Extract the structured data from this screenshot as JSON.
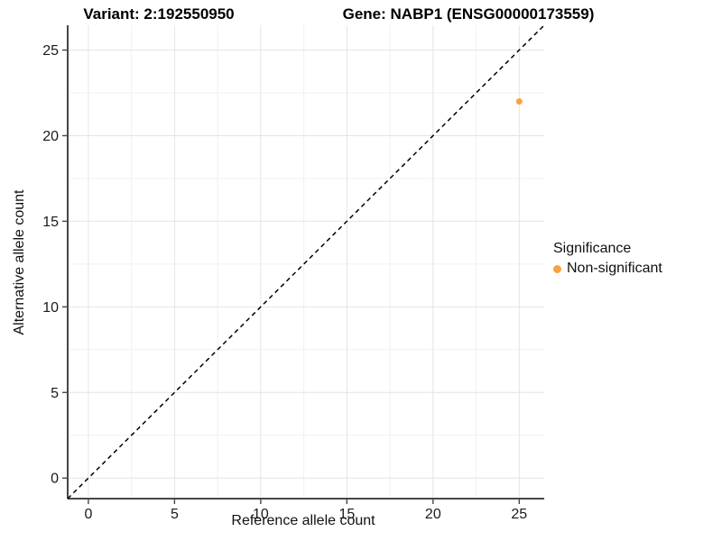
{
  "titles": {
    "variant": "Variant: 2:192550950",
    "gene": "Gene: NABP1 (ENSG00000173559)"
  },
  "axes": {
    "x": {
      "label": "Reference allele count"
    },
    "y": {
      "label": "Alternative allele count"
    }
  },
  "legend": {
    "title": "Significance",
    "items": [
      {
        "label": "Non-significant",
        "color": "#F9A242"
      }
    ]
  },
  "colors": {
    "point": "#F9A242",
    "grid_major": "#e4e4e4",
    "grid_minor": "#f1f1f1",
    "axis_line": "#474747",
    "tick_text": "#1a1a1a",
    "identity_line": "#000000",
    "background": "#ffffff"
  },
  "chart_data": {
    "type": "scatter",
    "title": "Variant: 2:192550950 | Gene: NABP1 (ENSG00000173559)",
    "xlabel": "Reference allele count",
    "ylabel": "Alternative allele count",
    "xlim": [
      -1.2,
      26.45
    ],
    "ylim": [
      -1.2,
      26.45
    ],
    "x_ticks": [
      0,
      5,
      10,
      15,
      20,
      25
    ],
    "y_ticks": [
      0,
      5,
      10,
      15,
      20,
      25
    ],
    "minor_grid_positions": [
      2.5,
      7.5,
      12.5,
      17.5,
      22.5
    ],
    "grid": true,
    "legend_position": "right",
    "series": [
      {
        "name": "Non-significant",
        "color": "#F9A242",
        "points": [
          {
            "x": 25,
            "y": 22
          }
        ]
      }
    ],
    "reference_line": {
      "type": "identity y=x",
      "from": [
        -1.2,
        -1.2
      ],
      "to": [
        26.45,
        26.45
      ],
      "style": "dashed",
      "color": "#000000"
    }
  }
}
